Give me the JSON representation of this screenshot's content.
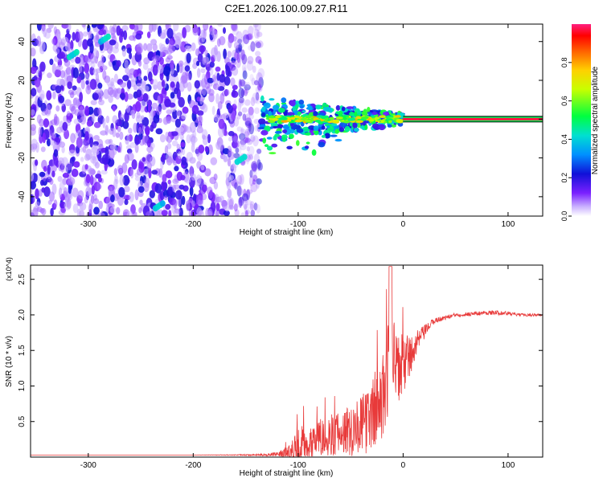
{
  "title": "C2E1.2026.100.09.27.R11",
  "chart_data": [
    {
      "type": "heatmap",
      "title": "C2E1.2026.100.09.27.R11",
      "xlabel": "Height of straight line (km)",
      "ylabel": "Frequency (Hz)",
      "xlim": [
        -355,
        133
      ],
      "ylim": [
        -50,
        49
      ],
      "xticks": [
        -300,
        -200,
        -100,
        0,
        100
      ],
      "xtick_labels": [
        "-300",
        "-200",
        "-100",
        "0",
        "100"
      ],
      "yticks": [
        -40,
        -20,
        0,
        20,
        40
      ],
      "ytick_labels": [
        "-40",
        "-20",
        "0",
        "20",
        "40"
      ],
      "colorbar": {
        "label": "Normalized spectral amplitude",
        "range": [
          0,
          1
        ],
        "ticks": [
          0.0,
          0.2,
          0.4,
          0.6,
          0.8
        ],
        "tick_labels": [
          "0.0",
          "0.2",
          "0.4",
          "0.6",
          "0.8"
        ],
        "colors": [
          "#ffffff",
          "#b38cff",
          "#6a00ff",
          "#0a0ad0",
          "#0080ff",
          "#00e0e0",
          "#00ff40",
          "#ffff00",
          "#ff8000",
          "#ff0000",
          "#ff2080"
        ]
      },
      "carrier_frequency": 0,
      "noise_region_x": [
        -355,
        -135
      ],
      "signal_region_x": [
        -135,
        133
      ]
    },
    {
      "type": "line",
      "xlabel": "Height of straight line (km)",
      "ylabel": "SNR (10 * v/v)",
      "y_multiplier": "(x10^4)",
      "xlim": [
        -355,
        133
      ],
      "ylim": [
        0,
        2.7
      ],
      "xticks": [
        -300,
        -200,
        -100,
        0,
        100
      ],
      "xtick_labels": [
        "-300",
        "-200",
        "-100",
        "0",
        "100"
      ],
      "yticks": [
        0.5,
        1.0,
        1.5,
        2.0,
        2.5
      ],
      "ytick_labels": [
        "0.5",
        "1.0",
        "1.5",
        "2.0",
        "2.5"
      ],
      "series": [
        {
          "name": "SNR",
          "color": "#e83a3a",
          "x": [
            -355,
            -200,
            -140,
            -120,
            -110,
            -100,
            -95,
            -90,
            -85,
            -80,
            -75,
            -70,
            -65,
            -60,
            -55,
            -50,
            -45,
            -40,
            -35,
            -30,
            -25,
            -20,
            -15,
            -12,
            -10,
            -8,
            -5,
            0,
            5,
            10,
            15,
            20,
            25,
            30,
            40,
            50,
            60,
            70,
            80,
            90,
            100,
            110,
            120,
            133
          ],
          "values": [
            0.03,
            0.03,
            0.03,
            0.04,
            0.06,
            0.1,
            0.18,
            0.22,
            0.25,
            0.27,
            0.3,
            0.3,
            0.32,
            0.34,
            0.36,
            0.4,
            0.45,
            0.45,
            0.5,
            0.6,
            0.7,
            0.8,
            1.2,
            1.7,
            1.4,
            1.3,
            1.2,
            1.3,
            1.4,
            1.5,
            1.65,
            1.75,
            1.85,
            1.92,
            1.96,
            2.0,
            2.01,
            2.02,
            2.03,
            2.03,
            2.02,
            2.0,
            2.0,
            2.0
          ],
          "noise_amplitude": [
            0.0,
            0.0,
            0.01,
            0.03,
            0.1,
            0.3,
            0.3,
            0.25,
            0.25,
            0.25,
            0.3,
            0.3,
            0.3,
            0.3,
            0.35,
            0.4,
            0.4,
            0.4,
            0.45,
            0.5,
            0.6,
            0.6,
            0.7,
            0.6,
            0.6,
            0.6,
            0.5,
            0.45,
            0.35,
            0.25,
            0.15,
            0.1,
            0.06,
            0.04,
            0.03,
            0.03,
            0.03,
            0.03,
            0.03,
            0.03,
            0.03,
            0.02,
            0.02,
            0.02
          ]
        }
      ]
    }
  ]
}
